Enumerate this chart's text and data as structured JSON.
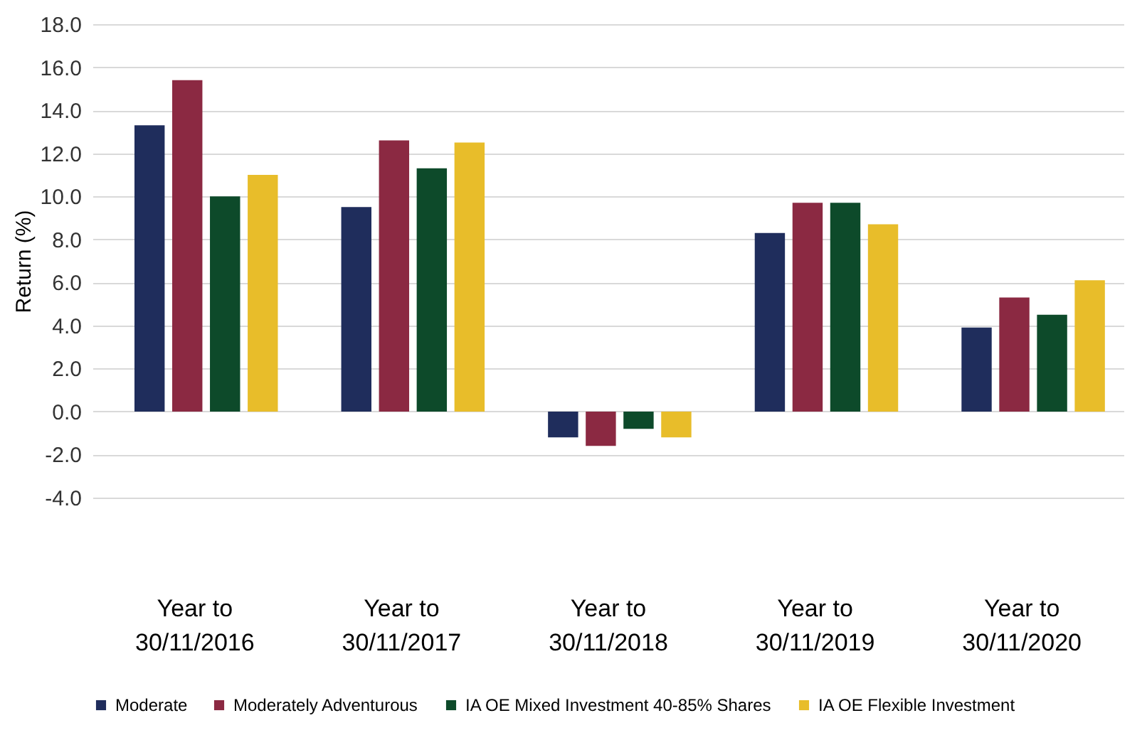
{
  "chart_data": {
    "type": "bar",
    "ylabel": "Return (%)",
    "categories": [
      "Year to 30/11/2016",
      "Year to 30/11/2017",
      "Year to 30/11/2018",
      "Year to 30/11/2019",
      "Year to 30/11/2020"
    ],
    "series": [
      {
        "name": "Moderate",
        "color": "#1f2d5c",
        "values": [
          13.3,
          9.5,
          -1.2,
          8.3,
          3.9
        ]
      },
      {
        "name": "Moderately Adventurous",
        "color": "#8b2942",
        "values": [
          15.4,
          12.6,
          -1.6,
          9.7,
          5.3
        ]
      },
      {
        "name": "IA OE Mixed Investment 40-85% Shares",
        "color": "#0d4a2a",
        "values": [
          10.0,
          11.3,
          -0.8,
          9.7,
          4.5
        ]
      },
      {
        "name": "IA OE Flexible Investment",
        "color": "#e8bd2a",
        "values": [
          11.0,
          12.5,
          -1.2,
          8.7,
          6.1
        ]
      }
    ],
    "ylim": [
      -4,
      18
    ],
    "yticks": [
      {
        "value": -4,
        "label": "-4.0"
      },
      {
        "value": -2,
        "label": "-2.0"
      },
      {
        "value": 0,
        "label": "0.0"
      },
      {
        "value": 2,
        "label": "2.0"
      },
      {
        "value": 4,
        "label": "4.0"
      },
      {
        "value": 6,
        "label": "6.0"
      },
      {
        "value": 8,
        "label": "8.0"
      },
      {
        "value": 10,
        "label": "10.0"
      },
      {
        "value": 12,
        "label": "12.0"
      },
      {
        "value": 14,
        "label": "14.0"
      },
      {
        "value": 16,
        "label": "16.0"
      },
      {
        "value": 18,
        "label": "18.0"
      }
    ],
    "grid": "y",
    "legend": "bottom"
  }
}
